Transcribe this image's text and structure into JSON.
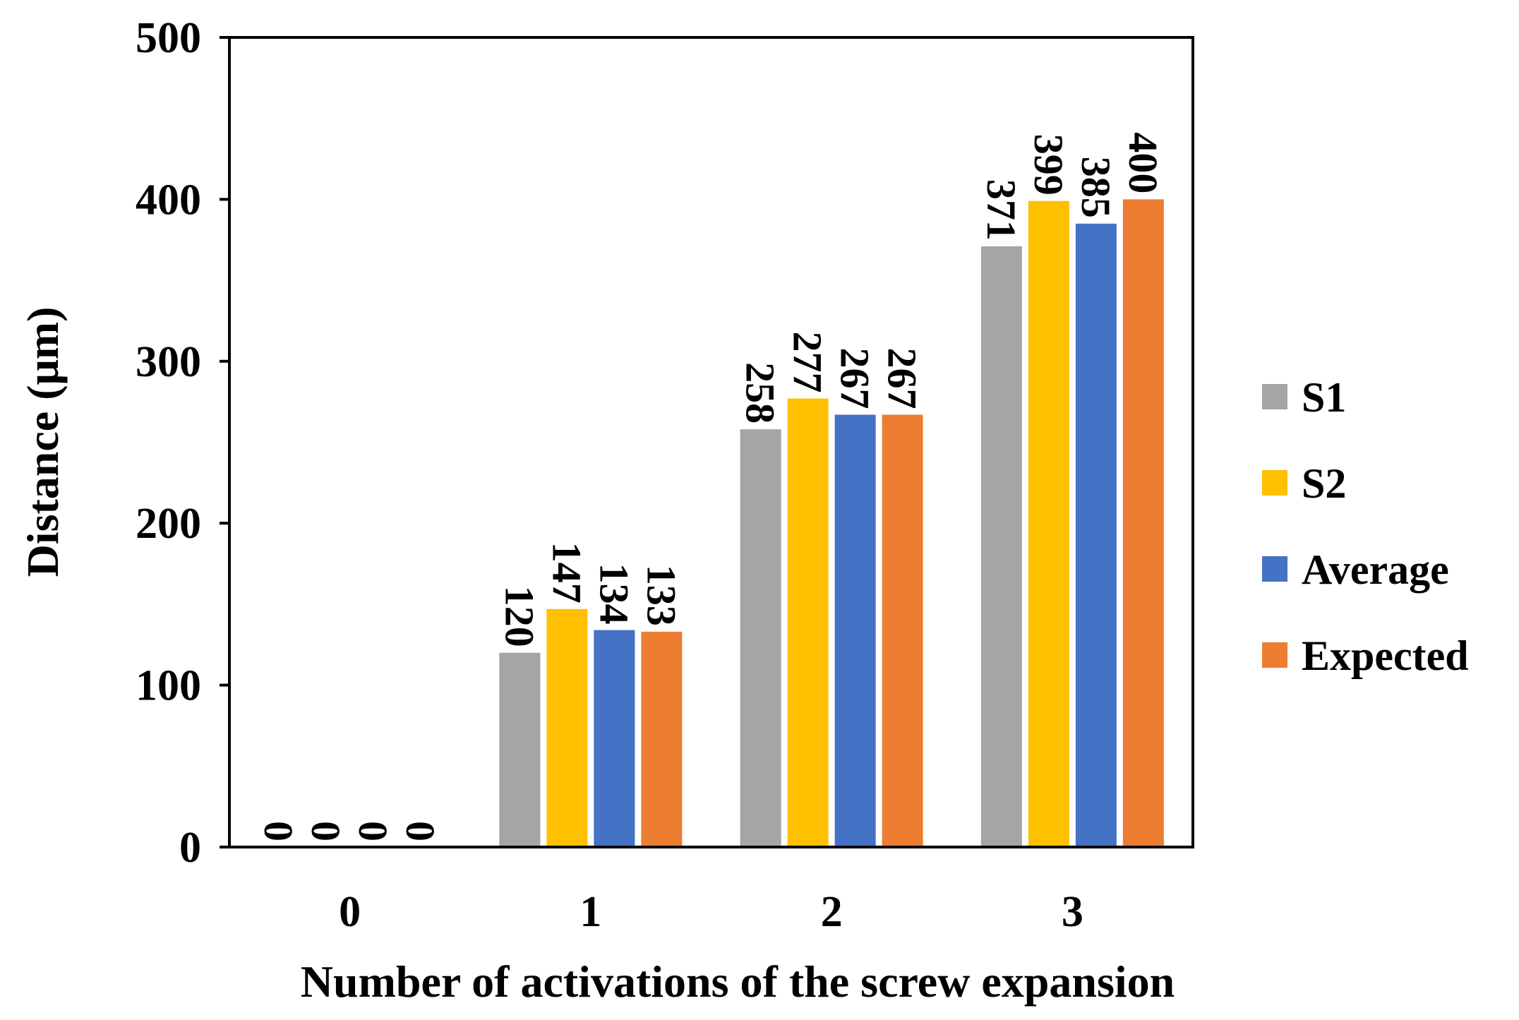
{
  "chart_data": {
    "type": "bar",
    "title": "",
    "xlabel": "Number of activations of the screw expansion",
    "ylabel": "Distance (μm)",
    "categories": [
      "0",
      "1",
      "2",
      "3"
    ],
    "ylim": [
      0,
      500
    ],
    "yticks": [
      0,
      100,
      200,
      300,
      400,
      500
    ],
    "grid": false,
    "legend_position": "right",
    "series": [
      {
        "name": "S1",
        "color": "#A5A5A5",
        "values": [
          0,
          120,
          258,
          371
        ]
      },
      {
        "name": "S2",
        "color": "#FFC000",
        "values": [
          0,
          147,
          277,
          399
        ]
      },
      {
        "name": "Average",
        "color": "#4472C4",
        "values": [
          0,
          134,
          267,
          385
        ]
      },
      {
        "name": "Expected",
        "color": "#ED7D31",
        "values": [
          0,
          133,
          267,
          400
        ]
      }
    ]
  }
}
